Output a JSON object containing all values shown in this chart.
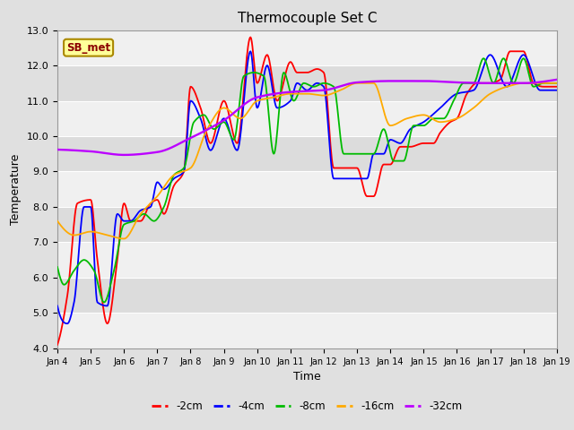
{
  "title": "Thermocouple Set C",
  "xlabel": "Time",
  "ylabel": "Temperature",
  "ylim": [
    4.0,
    13.0
  ],
  "yticks": [
    4.0,
    5.0,
    6.0,
    7.0,
    8.0,
    9.0,
    10.0,
    11.0,
    12.0,
    13.0
  ],
  "xtick_labels": [
    "Jan 4",
    "Jan 5",
    "Jan 6",
    "Jan 7",
    "Jan 8",
    "Jan 9",
    "Jan 10",
    "Jan 11",
    "Jan 12",
    "Jan 13",
    "Jan 14",
    "Jan 15",
    "Jan 16",
    "Jan 17",
    "Jan 18",
    "Jan 19"
  ],
  "series_colors": {
    "-2cm": "#ff0000",
    "-4cm": "#0000ff",
    "-8cm": "#00bb00",
    "-16cm": "#ffaa00",
    "-32cm": "#bb00ff"
  },
  "legend_label": "SB_met",
  "fig_bg_color": "#e0e0e0",
  "band_light": "#f0f0f0",
  "band_dark": "#dcdcdc",
  "grid_line_color": "#ffffff",
  "annotation_box_color": "#ffff99",
  "annotation_border_color": "#aa8800",
  "linewidth": 1.3
}
